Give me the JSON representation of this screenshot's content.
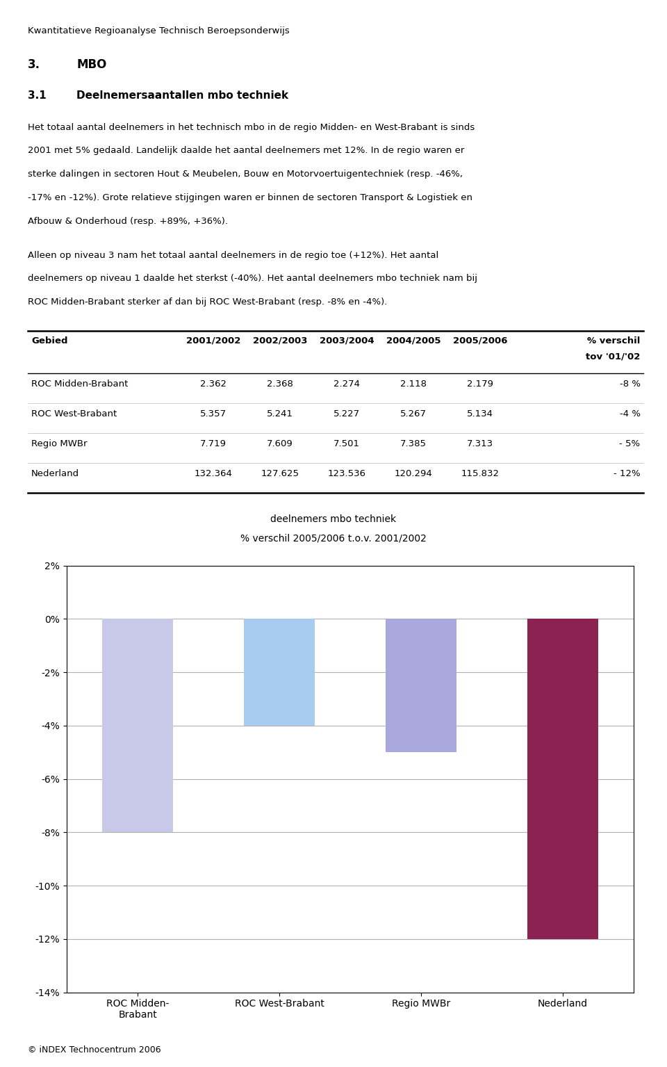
{
  "chart_data": {
    "type": "bar",
    "title": "deelnemers mbo techniek",
    "subtitle": "% verschil 2005/2006 t.o.v. 2001/2002",
    "categories": [
      "ROC Midden-\nBrabant",
      "ROC West-Brabant",
      "Regio MWBr",
      "Nederland"
    ],
    "values": [
      -8,
      -4,
      -5,
      -12
    ],
    "colors": [
      "#c8c8e8",
      "#a8ccf0",
      "#a8a8dc",
      "#8b2252"
    ],
    "ylim": [
      -14,
      2
    ],
    "yticks": [
      {
        "value": 2,
        "label": "2%"
      },
      {
        "value": 0,
        "label": "0%"
      },
      {
        "value": -2,
        "label": "-2%"
      },
      {
        "value": -4,
        "label": "-4%"
      },
      {
        "value": -6,
        "label": "-6%"
      },
      {
        "value": -8,
        "label": "-8%"
      },
      {
        "value": -10,
        "label": "-10%"
      },
      {
        "value": -12,
        "label": "-12%"
      },
      {
        "value": -14,
        "label": "-14%"
      }
    ],
    "grid": true,
    "annotations": [
      "Kwantitatieve Regioanalyse Technisch Beroepsonderwijs",
      "3.",
      "MBO",
      "3.1",
      "Deelnemersaantallen mbo techniek",
      "Het totaal aantal deelnemers in het technisch mbo in de regio Midden- en West-Brabant is sinds",
      "2001 met 5% gedaald. Landelijk daalde het aantal deelnemers met 12%. In de regio waren er",
      "sterke dalingen in sectoren Hout & Meubelen, Bouw en Motorvoertuigentechniek (resp. -46%,",
      "-17% en -12%). Grote relatieve stijgingen waren er binnen de sectoren Transport & Logistiek en",
      "Afbouw & Onderhoud (resp. +89%, +36%).",
      "Alleen op niveau 3 nam het totaal aantal deelnemers in de regio toe (+12%). Het aantal",
      "deelnemers op niveau 1 daalde het sterkst (-40%). Het aantal deelnemers mbo techniek nam bij",
      "ROC Midden-Brabant sterker af dan bij ROC West-Brabant (resp. -8% en -4%).",
      "© iNDEX Technocentrum 2006"
    ],
    "table": {
      "columns": [
        "Gebied",
        "2001/2002",
        "2002/2003",
        "2003/2004",
        "2004/2005",
        "2005/2006",
        "% verschil",
        "tov '01/'02"
      ],
      "rows": [
        [
          "ROC Midden-Brabant",
          "2.362",
          "2.368",
          "2.274",
          "2.118",
          "2.179",
          "-8 %"
        ],
        [
          "ROC West-Brabant",
          "5.357",
          "5.241",
          "5.227",
          "5.267",
          "5.134",
          "-4 %"
        ],
        [
          "Regio MWBr",
          "7.719",
          "7.609",
          "7.501",
          "7.385",
          "7.313",
          "- 5%"
        ],
        [
          "Nederland",
          "132.364",
          "127.625",
          "123.536",
          "120.294",
          "115.832",
          "- 12%"
        ]
      ]
    }
  }
}
